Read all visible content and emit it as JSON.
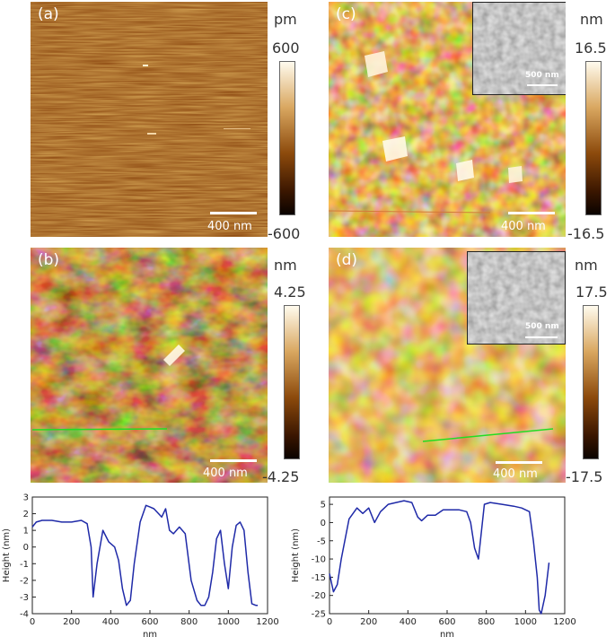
{
  "panels": {
    "a": {
      "label": "(a)",
      "scalebar": "400 nm",
      "unit": "pm",
      "cmax": "600",
      "cmin": "-600"
    },
    "b": {
      "label": "(b)",
      "scalebar": "400 nm",
      "unit": "nm",
      "cmax": "4.25",
      "cmin": "-4.25"
    },
    "c": {
      "label": "(c)",
      "scalebar": "400 nm",
      "unit": "nm",
      "cmax": "16.5",
      "cmin": "-16.5",
      "inset_scalebar": "500 nm"
    },
    "d": {
      "label": "(d)",
      "scalebar": "400 nm",
      "unit": "nm",
      "cmax": "17.5",
      "cmin": "-17.5",
      "inset_scalebar": "500 nm"
    }
  },
  "colors": {
    "afm_dark": "#1a0a00",
    "afm_mid": "#a0520f",
    "afm_light": "#fff4dc",
    "profile_line": "#22dd22",
    "curve": "#1f2aa8"
  },
  "chart_data": [
    {
      "type": "line",
      "xlabel": "nm",
      "ylabel": "Height (nm)",
      "xlim": [
        0,
        1200
      ],
      "ylim": [
        -4,
        3
      ],
      "xticks": [
        0,
        200,
        400,
        600,
        800,
        1000,
        1200
      ],
      "yticks": [
        3,
        2,
        1,
        0,
        -1,
        -2,
        -3,
        -4
      ],
      "x": [
        0,
        20,
        50,
        100,
        150,
        200,
        250,
        280,
        300,
        310,
        330,
        360,
        390,
        420,
        440,
        460,
        480,
        500,
        520,
        550,
        580,
        600,
        620,
        660,
        680,
        700,
        720,
        750,
        780,
        810,
        840,
        860,
        880,
        900,
        920,
        940,
        960,
        980,
        1000,
        1020,
        1040,
        1060,
        1080,
        1100,
        1120,
        1140,
        1150
      ],
      "y": [
        1.2,
        1.5,
        1.6,
        1.6,
        1.5,
        1.5,
        1.6,
        1.4,
        0,
        -3.0,
        -1.0,
        1.0,
        0.3,
        0,
        -0.8,
        -2.5,
        -3.5,
        -3.2,
        -1.0,
        1.5,
        2.5,
        2.4,
        2.3,
        1.8,
        2.3,
        1.0,
        0.8,
        1.2,
        0.8,
        -2.0,
        -3.2,
        -3.5,
        -3.5,
        -3.0,
        -1.5,
        0.5,
        1.0,
        -1.0,
        -2.5,
        0,
        1.3,
        1.5,
        1.0,
        -1.5,
        -3.4,
        -3.5,
        -3.5
      ]
    },
    {
      "type": "line",
      "xlabel": "nm",
      "ylabel": "Height (nm)",
      "xlim": [
        0,
        1200
      ],
      "ylim": [
        -25,
        7
      ],
      "xticks": [
        0,
        200,
        400,
        600,
        800,
        1000,
        1200
      ],
      "yticks": [
        5,
        0,
        -5,
        -10,
        -15,
        -20,
        -25
      ],
      "x": [
        0,
        20,
        40,
        60,
        100,
        140,
        170,
        200,
        230,
        260,
        300,
        340,
        380,
        420,
        450,
        470,
        500,
        540,
        580,
        620,
        660,
        700,
        720,
        740,
        760,
        790,
        820,
        880,
        940,
        980,
        1020,
        1040,
        1060,
        1070,
        1080,
        1100,
        1120
      ],
      "y": [
        -14,
        -19,
        -17,
        -10,
        1,
        4,
        2.5,
        4,
        0,
        3,
        5,
        5.5,
        6,
        5.5,
        1.5,
        0.5,
        2,
        2,
        3.5,
        3.5,
        3.5,
        3,
        0,
        -7,
        -10,
        5,
        5.5,
        5,
        4.5,
        4,
        3,
        -5,
        -15,
        -24,
        -25,
        -20,
        -11
      ]
    }
  ]
}
